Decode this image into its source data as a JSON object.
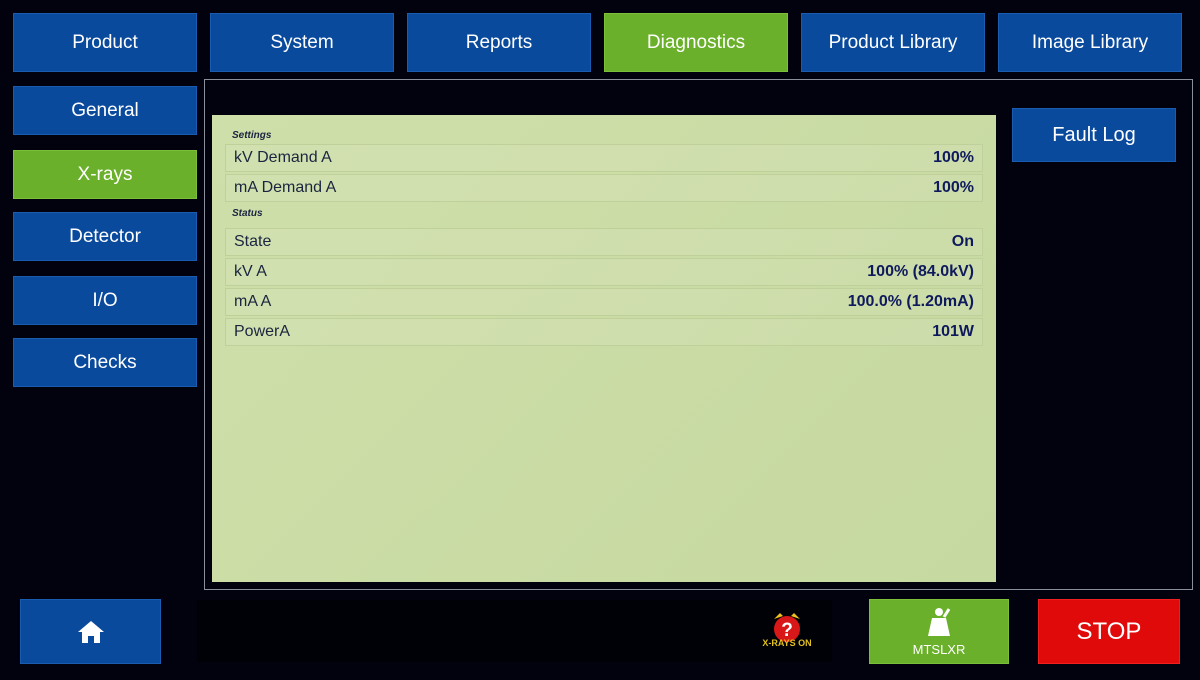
{
  "tabs": [
    {
      "label": "Product"
    },
    {
      "label": "System"
    },
    {
      "label": "Reports"
    },
    {
      "label": "Diagnostics",
      "active": true
    },
    {
      "label": "Product Library"
    },
    {
      "label": "Image Library"
    }
  ],
  "sidebar": {
    "items": [
      {
        "label": "General"
      },
      {
        "label": "X-rays",
        "active": true
      },
      {
        "label": "Detector"
      },
      {
        "label": "I/O"
      },
      {
        "label": "Checks"
      }
    ]
  },
  "panel": {
    "settings_title": "Settings",
    "settings": [
      {
        "label": "kV Demand A",
        "value": "100%"
      },
      {
        "label": "mA Demand A",
        "value": "100%"
      }
    ],
    "status_title": "Status",
    "status": [
      {
        "label": "State",
        "value": "On"
      },
      {
        "label": "kV A",
        "value": "100% (84.0kV)"
      },
      {
        "label": "mA A",
        "value": "100.0% (1.20mA)"
      },
      {
        "label": "PowerA",
        "value": "101W"
      }
    ]
  },
  "fault_log_label": "Fault Log",
  "footer": {
    "home_icon": "home-icon",
    "alarm_label": "X-RAYS ON",
    "user_label": "MTSLXR",
    "stop_label": "STOP"
  },
  "colors": {
    "blue": "#0a4a9c",
    "green": "#6ab02a",
    "stop": "#e00a0a",
    "panel": "#cadcA4"
  }
}
